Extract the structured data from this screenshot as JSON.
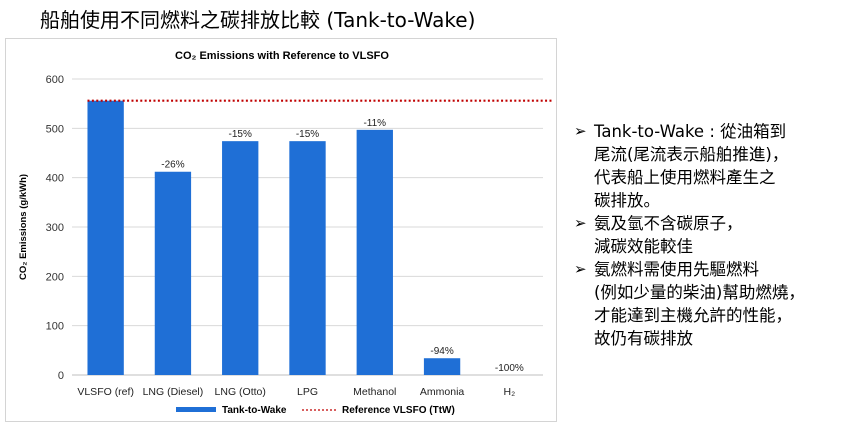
{
  "slide": {
    "title": "船舶使用不同燃料之碳排放比較 (Tank-to-Wake)"
  },
  "chart_data": {
    "type": "bar",
    "title": "CO₂ Emissions with Reference to VLSFO",
    "ylabel": "CO₂ Emissions (g/kWh)",
    "xlabel": "",
    "ylim": [
      0,
      600
    ],
    "yticks": [
      0,
      100,
      200,
      300,
      400,
      500,
      600
    ],
    "grid": true,
    "legend_position": "bottom",
    "categories": [
      "VLSFO (ref)",
      "LNG (Diesel)",
      "LNG (Otto)",
      "LPG",
      "Methanol",
      "Ammonia",
      "H₂"
    ],
    "series": [
      {
        "name": "Tank-to-Wake",
        "color": "#1f6fd6",
        "values": [
          556,
          412,
          474,
          474,
          497,
          34,
          0
        ],
        "data_labels": [
          "",
          "-26%",
          "-15%",
          "-15%",
          "-11%",
          "-94%",
          "-100%"
        ]
      }
    ],
    "reference_line": {
      "name": "Reference VLSFO (TtW)",
      "value": 556,
      "color": "#c00000",
      "style": "dotted"
    }
  },
  "bullets": [
    {
      "marker": "➢",
      "text": "Tank-to-Wake : 從油箱到\n尾流(尾流表示船舶推進)，\n代表船上使用燃料產生之\n碳排放。"
    },
    {
      "marker": "➢",
      "text": "氨及氫不含碳原子，\n減碳效能較佳"
    },
    {
      "marker": "➢",
      "text": "氨燃料需使用先驅燃料\n(例如少量的柴油)幫助燃燒，\n才能達到主機允許的性能，\n故仍有碳排放"
    }
  ]
}
